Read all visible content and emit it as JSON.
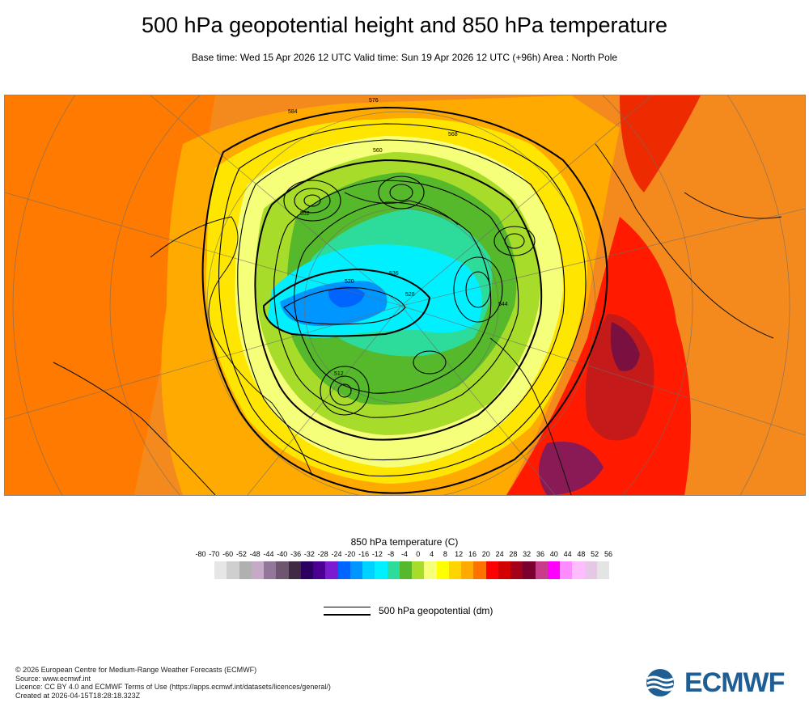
{
  "header": {
    "title": "500 hPa geopotential height and 850 hPa temperature",
    "subtitle": "Base time: Wed 15 Apr 2026 12 UTC Valid time: Sun 19 Apr 2026 12 UTC (+96h) Area : North Pole"
  },
  "map": {
    "contour_labels": [
      "576",
      "584",
      "568",
      "560",
      "552",
      "544",
      "536",
      "528",
      "520",
      "512"
    ]
  },
  "legend": {
    "title": "850 hPa temperature (C)",
    "ticks": [
      "-80",
      "-70",
      "-60",
      "-52",
      "-48",
      "-44",
      "-40",
      "-36",
      "-32",
      "-28",
      "-24",
      "-20",
      "-16",
      "-12",
      "-8",
      "-4",
      "0",
      "4",
      "8",
      "12",
      "16",
      "20",
      "24",
      "28",
      "32",
      "36",
      "40",
      "44",
      "48",
      "52",
      "56"
    ],
    "colors": [
      "#e6e6e6",
      "#cfcfcf",
      "#b0b0b0",
      "#c6a9c6",
      "#93779a",
      "#6e566f",
      "#3f2945",
      "#2b0060",
      "#4b0091",
      "#7b1ccf",
      "#0064ff",
      "#0096ff",
      "#00d2ff",
      "#00f0ff",
      "#2ddb9b",
      "#56b82b",
      "#a8dc2a",
      "#f5ff7a",
      "#ffff00",
      "#ffd500",
      "#ffaa00",
      "#ff7200",
      "#ff0000",
      "#d20000",
      "#a50019",
      "#7a0030",
      "#c83c8c",
      "#ff00ff",
      "#ff8cff",
      "#ffbcff",
      "#e6c8e6",
      "#e4e4e4"
    ],
    "contour_label": "500 hPa geopotential (dm)"
  },
  "footer": {
    "lines": [
      "© 2026 European Centre for Medium-Range Weather Forecasts (ECMWF)",
      "Source: www.ecmwf.int",
      "Licence: CC BY 4.0 and ECMWF Terms of Use (https://apps.ecmwf.int/datasets/licences/general/)",
      "Created at 2026-04-15T18:28:18.323Z"
    ]
  },
  "logo": {
    "text": "ECMWF",
    "color": "#1f5e93"
  }
}
